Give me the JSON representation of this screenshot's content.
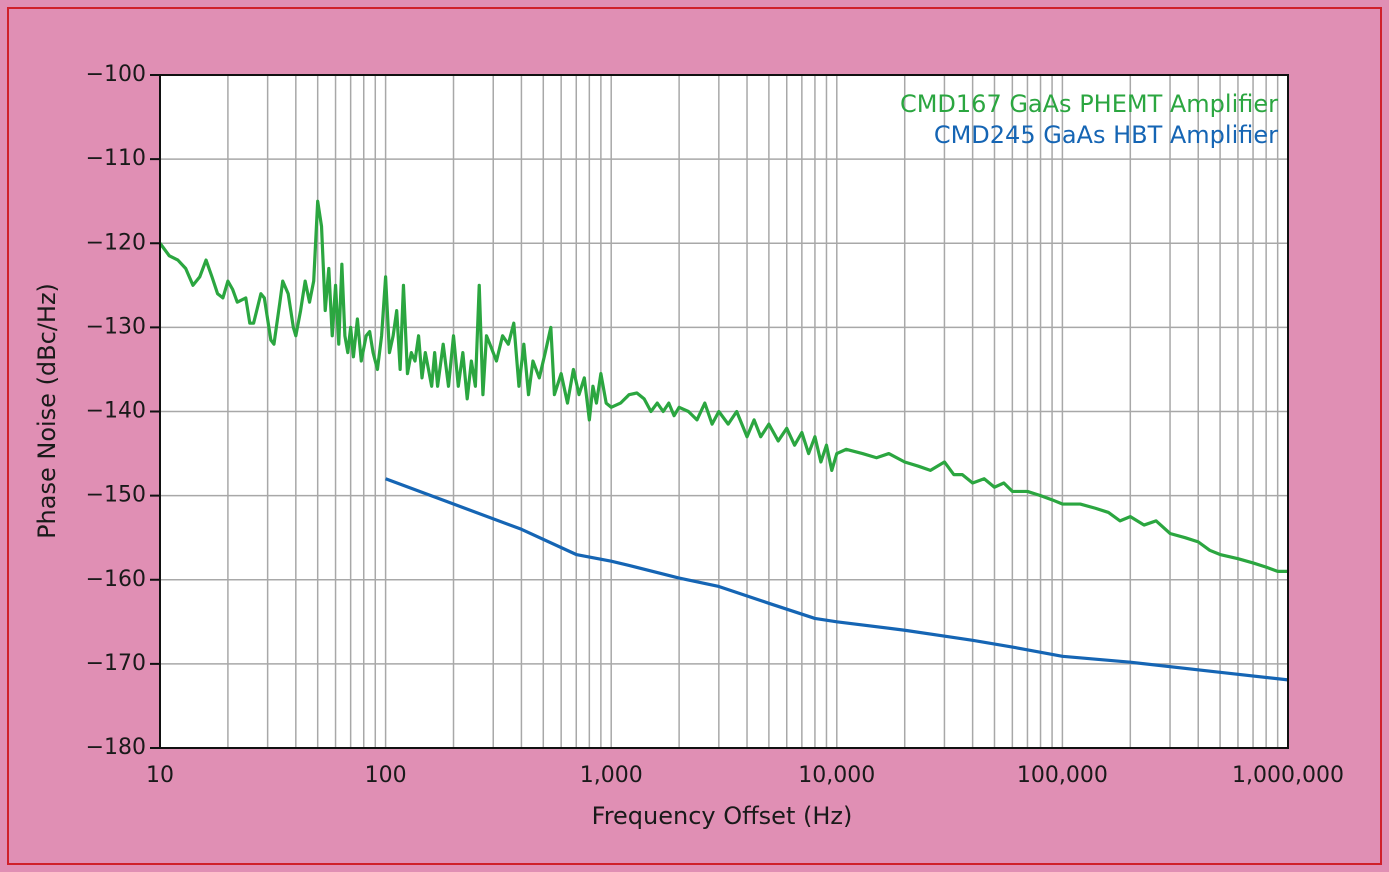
{
  "chart_data": {
    "type": "line",
    "xlabel": "Frequency Offset (Hz)",
    "ylabel": "Phase Noise (dBc/Hz)",
    "xscale": "log",
    "grid": true,
    "minor_grid": true,
    "legend": "upper right",
    "xlim": [
      10,
      1000000
    ],
    "ylim": [
      -180,
      -100
    ],
    "xticks": [
      10,
      100,
      {
        "value": 1000,
        "label": "1,000"
      },
      {
        "value": 10000,
        "label": "10,000"
      },
      {
        "value": 100000,
        "label": "100,000"
      },
      {
        "value": 1000000,
        "label": "1,000,000"
      }
    ],
    "yticks": [
      {
        "value": -100,
        "label": "−100"
      },
      {
        "value": -110,
        "label": "−110"
      },
      {
        "value": -120,
        "label": "−120"
      },
      {
        "value": -130,
        "label": "−130"
      },
      {
        "value": -140,
        "label": "−140"
      },
      {
        "value": -150,
        "label": "−150"
      },
      {
        "value": -160,
        "label": "−160"
      },
      {
        "value": -170,
        "label": "−170"
      },
      {
        "value": -180,
        "label": "−180"
      }
    ],
    "series": [
      {
        "name": "CMD167 GaAs PHEMT Amplifier",
        "color": "#2ba640",
        "x": [
          10,
          11,
          12,
          13,
          14,
          15,
          16,
          17,
          18,
          19,
          20,
          21,
          22,
          24,
          25,
          26,
          28,
          29,
          31,
          32,
          34,
          35,
          37,
          39,
          40,
          42,
          44,
          46,
          48,
          50,
          52,
          54,
          56,
          58,
          60,
          62,
          64,
          66,
          68,
          70,
          72,
          75,
          78,
          82,
          85,
          88,
          92,
          96,
          100,
          104,
          108,
          112,
          116,
          120,
          125,
          130,
          135,
          140,
          145,
          150,
          160,
          165,
          170,
          180,
          190,
          200,
          210,
          220,
          230,
          240,
          250,
          260,
          270,
          280,
          290,
          310,
          330,
          350,
          370,
          390,
          410,
          430,
          450,
          480,
          510,
          540,
          560,
          600,
          640,
          680,
          720,
          760,
          800,
          830,
          860,
          900,
          950,
          1000,
          1100,
          1200,
          1300,
          1400,
          1500,
          1600,
          1700,
          1800,
          1900,
          2000,
          2200,
          2400,
          2600,
          2800,
          3000,
          3300,
          3600,
          4000,
          4300,
          4600,
          5000,
          5500,
          6000,
          6500,
          7000,
          7500,
          8000,
          8500,
          9000,
          9500,
          10000,
          11000,
          13000,
          15000,
          17000,
          20000,
          23000,
          26000,
          30000,
          33000,
          36000,
          40000,
          45000,
          50000,
          55000,
          60000,
          70000,
          80000,
          90000,
          100000,
          120000,
          140000,
          160000,
          180000,
          200000,
          230000,
          260000,
          300000,
          350000,
          400000,
          450000,
          500000,
          600000,
          700000,
          800000,
          900000,
          1000000
        ],
        "values": [
          -120,
          -121.5,
          -122,
          -123,
          -125,
          -124,
          -122,
          -124,
          -126,
          -126.5,
          -124.5,
          -125.5,
          -127,
          -126.5,
          -129.5,
          -129.5,
          -126,
          -126.5,
          -131.5,
          -132,
          -127,
          -124.5,
          -126,
          -130,
          -131,
          -128,
          -124.5,
          -127,
          -124.5,
          -115,
          -118,
          -128,
          -123,
          -131,
          -125,
          -132,
          -122.5,
          -131,
          -133,
          -130,
          -133.5,
          -129,
          -134,
          -131,
          -130.5,
          -133,
          -135,
          -131,
          -124,
          -133,
          -131,
          -128,
          -135,
          -125,
          -135.5,
          -133,
          -134,
          -131,
          -136,
          -133,
          -137,
          -133,
          -137,
          -132,
          -137,
          -131,
          -137,
          -133,
          -138.5,
          -134,
          -137,
          -125,
          -138,
          -131,
          -132,
          -134,
          -131,
          -132,
          -129.5,
          -137,
          -132,
          -138,
          -134,
          -136,
          -133,
          -130,
          -138,
          -135.5,
          -139,
          -135,
          -138,
          -136,
          -141,
          -137,
          -139,
          -135.5,
          -139,
          -139.5,
          -139,
          -138,
          -137.8,
          -138.5,
          -140,
          -139,
          -140,
          -139,
          -140.5,
          -139.5,
          -140,
          -141,
          -139,
          -141.5,
          -140,
          -141.5,
          -140,
          -143,
          -141,
          -143,
          -141.5,
          -143.5,
          -142,
          -144,
          -142.5,
          -145,
          -143,
          -146,
          -144,
          -147,
          -145,
          -144.5,
          -145,
          -145.5,
          -145,
          -146,
          -146.5,
          -147,
          -146,
          -147.5,
          -147.5,
          -148.5,
          -148,
          -149,
          -148.5,
          -149.5,
          -149.5,
          -150,
          -150.5,
          -151,
          -151,
          -151.5,
          -152,
          -153,
          -152.5,
          -153.5,
          -153,
          -154.5,
          -155,
          -155.5,
          -156.5,
          -157,
          -157.5,
          -158,
          -158.5,
          -159,
          -159
        ]
      },
      {
        "name": "CMD245 GaAs HBT Amplifier",
        "color": "#1565b4",
        "x": [
          100,
          200,
          400,
          700,
          1000,
          1200,
          2000,
          3000,
          5000,
          8000,
          10000,
          20000,
          40000,
          60000,
          100000,
          200000,
          500000,
          1000000
        ],
        "values": [
          -148,
          -151,
          -154,
          -157,
          -157.8,
          -158.3,
          -159.8,
          -160.8,
          -162.8,
          -164.6,
          -165,
          -166,
          -167.2,
          -168,
          -169.1,
          -169.8,
          -171,
          -171.9
        ]
      }
    ]
  }
}
